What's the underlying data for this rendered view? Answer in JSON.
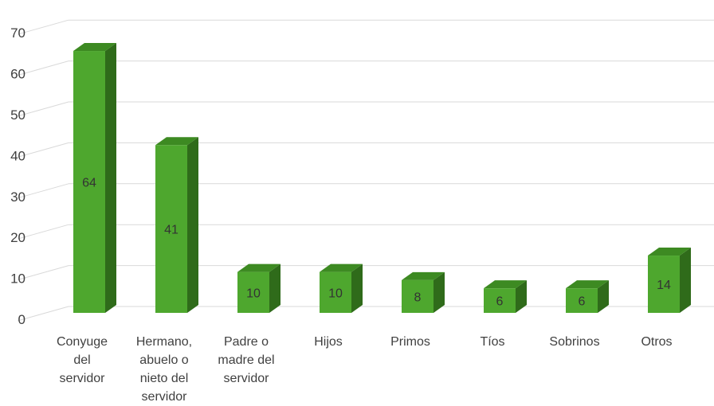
{
  "chart_data": {
    "type": "bar",
    "style": "3d-column",
    "categories": [
      "Conyuge del servidor",
      "Hermano, abuelo o nieto del servidor",
      "Padre o madre del servidor",
      "Hijos",
      "Primos",
      "Tíos",
      "Sobrinos",
      "Otros"
    ],
    "category_lines": [
      [
        "Conyuge",
        "del",
        "servidor"
      ],
      [
        "Hermano,",
        "abuelo o",
        "nieto del",
        "servidor"
      ],
      [
        "Padre o",
        "madre del",
        "servidor"
      ],
      [
        "Hijos"
      ],
      [
        "Primos"
      ],
      [
        "Tíos"
      ],
      [
        "Sobrinos"
      ],
      [
        "Otros"
      ]
    ],
    "values": [
      64,
      41,
      10,
      10,
      8,
      6,
      6,
      14
    ],
    "data_labels": [
      "64",
      "41",
      "10",
      "10",
      "8",
      "6",
      "6",
      "14"
    ],
    "ylim": [
      0,
      70
    ],
    "yticks": [
      "0",
      "10",
      "20",
      "30",
      "40",
      "50",
      "60",
      "70"
    ],
    "grid": true,
    "legend": "none",
    "title": "",
    "xlabel": "",
    "ylabel": "",
    "colors": {
      "bar_front": "#4ea72e",
      "bar_side": "#2f6b1a",
      "bar_top": "#3d8a22",
      "grid": "#d9d9d9",
      "text": "#404040"
    }
  }
}
